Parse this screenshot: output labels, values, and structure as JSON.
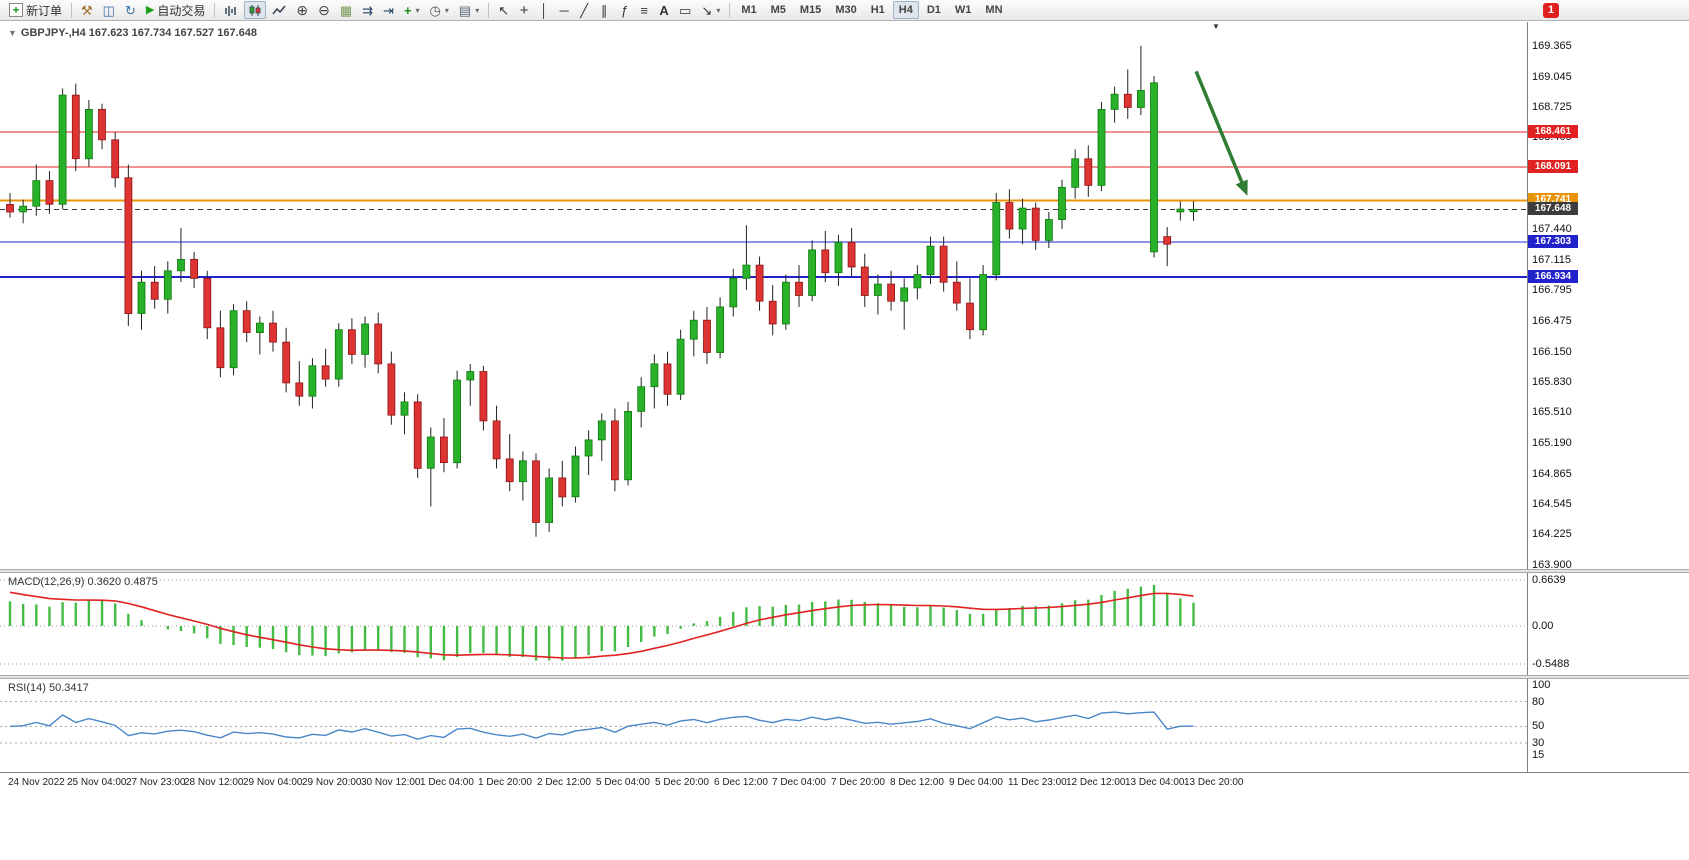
{
  "toolbar": {
    "new_order_label": "新订单",
    "autotrading_label": "自动交易",
    "timeframes": [
      "M1",
      "M5",
      "M15",
      "M30",
      "H1",
      "H4",
      "D1",
      "W1",
      "MN"
    ],
    "active_timeframe": "H4",
    "notification_count": "1"
  },
  "icons": {
    "new_order": "+",
    "hammer": "⚒",
    "chart_window": "◫",
    "cycle": "↻",
    "autotrading_play": "▶",
    "zoom_in": "⊕",
    "zoom_out": "⊖",
    "tile_windows": "▦",
    "auto_scroll": "⇉",
    "chart_shift": "⇥",
    "indicators_plus": "+",
    "periods_clock": "◷",
    "templates": "▤",
    "cursor": "↖",
    "crosshair": "+",
    "vertical_line": "│",
    "horizontal_line": "─",
    "trendline": "╱",
    "channel": "∥",
    "fibonacci": "ƒ",
    "shapes": "≡",
    "text": "A",
    "text_label": "▭",
    "arrows": "↘",
    "dropdown": "▾",
    "symbol_dropdown": "▼",
    "shift_marker": "▼"
  },
  "chart": {
    "symbol_title": "GBPJPY-,H4 167.623 167.734 167.527 167.648"
  },
  "time_axis": {
    "labels": [
      "24 Nov 2022",
      "25 Nov 04:00",
      "27 Nov 23:00",
      "28 Nov 12:00",
      "29 Nov 04:00",
      "29 Nov 20:00",
      "30 Nov 12:00",
      "1 Dec 04:00",
      "1 Dec 20:00",
      "2 Dec 12:00",
      "5 Dec 04:00",
      "5 Dec 20:00",
      "6 Dec 12:00",
      "7 Dec 04:00",
      "7 Dec 20:00",
      "8 Dec 12:00",
      "9 Dec 04:00",
      "11 Dec 23:00",
      "12 Dec 12:00",
      "13 Dec 04:00",
      "13 Dec 20:00"
    ]
  },
  "chart_data": [
    {
      "type": "candlestick",
      "title": "GBPJPY-,H4",
      "ohlc_display": {
        "open": "167.623",
        "high": "167.734",
        "low": "167.527",
        "close": "167.648"
      },
      "ylim": [
        163.85,
        169.62
      ],
      "price_axis_labels": [
        "169.365",
        "169.045",
        "168.725",
        "168.405",
        "167.440",
        "167.115",
        "166.795",
        "166.475",
        "166.150",
        "165.830",
        "165.510",
        "165.190",
        "164.865",
        "164.545",
        "164.225",
        "163.900"
      ],
      "colors": {
        "bull": "#29b129",
        "bull_border": "#0f7a0f",
        "bear": "#dd3333",
        "bear_border": "#8f1515",
        "wick": "#222222"
      },
      "levels": [
        {
          "value": 168.461,
          "label": "168.461",
          "color": "#e02222",
          "width": 1,
          "style": "solid"
        },
        {
          "value": 168.091,
          "label": "168.091",
          "color": "#e02222",
          "width": 1,
          "style": "solid"
        },
        {
          "value": 167.741,
          "label": "167.741",
          "color": "#e8940a",
          "width": 2,
          "style": "solid"
        },
        {
          "value": 167.648,
          "label": "167.648",
          "color": "#3c3c3c",
          "width": 1,
          "style": "dashed"
        },
        {
          "value": 167.303,
          "label": "167.303",
          "color": "#2222cc",
          "width": 1,
          "style": "solid"
        },
        {
          "value": 166.934,
          "label": "166.934",
          "color": "#2222cc",
          "width": 2,
          "style": "solid"
        }
      ],
      "annotation_arrow": {
        "from_index": 90.2,
        "from_price": 169.1,
        "to_index": 94.1,
        "to_price": 167.79,
        "color": "#2e7d32"
      },
      "candles": [
        [
          167.7,
          167.82,
          167.56,
          167.62
        ],
        [
          167.62,
          167.75,
          167.5,
          167.68
        ],
        [
          167.68,
          168.12,
          167.58,
          167.95
        ],
        [
          167.95,
          168.05,
          167.6,
          167.7
        ],
        [
          167.7,
          168.92,
          167.65,
          168.85
        ],
        [
          168.85,
          168.97,
          168.05,
          168.18
        ],
        [
          168.18,
          168.8,
          168.1,
          168.7
        ],
        [
          168.7,
          168.76,
          168.28,
          168.38
        ],
        [
          168.38,
          168.46,
          167.88,
          167.98
        ],
        [
          167.98,
          168.12,
          166.42,
          166.55
        ],
        [
          166.55,
          167.0,
          166.38,
          166.88
        ],
        [
          166.88,
          167.05,
          166.6,
          166.7
        ],
        [
          166.7,
          167.1,
          166.55,
          167.0
        ],
        [
          167.0,
          167.45,
          166.88,
          167.12
        ],
        [
          167.12,
          167.2,
          166.82,
          166.92
        ],
        [
          166.92,
          167.0,
          166.28,
          166.4
        ],
        [
          166.4,
          166.58,
          165.88,
          165.98
        ],
        [
          165.98,
          166.65,
          165.9,
          166.58
        ],
        [
          166.58,
          166.68,
          166.25,
          166.35
        ],
        [
          166.35,
          166.52,
          166.12,
          166.45
        ],
        [
          166.45,
          166.58,
          166.15,
          166.25
        ],
        [
          166.25,
          166.4,
          165.72,
          165.82
        ],
        [
          165.82,
          166.05,
          165.58,
          165.68
        ],
        [
          165.68,
          166.08,
          165.55,
          166.0
        ],
        [
          166.0,
          166.18,
          165.78,
          165.86
        ],
        [
          165.86,
          166.45,
          165.78,
          166.38
        ],
        [
          166.38,
          166.5,
          166.02,
          166.12
        ],
        [
          166.12,
          166.52,
          165.98,
          166.44
        ],
        [
          166.44,
          166.56,
          165.92,
          166.02
        ],
        [
          166.02,
          166.15,
          165.38,
          165.48
        ],
        [
          165.48,
          165.72,
          165.28,
          165.62
        ],
        [
          165.62,
          165.7,
          164.82,
          164.92
        ],
        [
          164.92,
          165.35,
          164.52,
          165.25
        ],
        [
          165.25,
          165.45,
          164.88,
          164.98
        ],
        [
          164.98,
          165.95,
          164.92,
          165.85
        ],
        [
          165.85,
          166.02,
          165.58,
          165.94
        ],
        [
          165.94,
          166.0,
          165.32,
          165.42
        ],
        [
          165.42,
          165.58,
          164.92,
          165.02
        ],
        [
          165.02,
          165.28,
          164.68,
          164.78
        ],
        [
          164.78,
          165.1,
          164.58,
          165.0
        ],
        [
          165.0,
          165.08,
          164.2,
          164.35
        ],
        [
          164.35,
          164.92,
          164.25,
          164.82
        ],
        [
          164.82,
          165.0,
          164.52,
          164.62
        ],
        [
          164.62,
          165.15,
          164.56,
          165.05
        ],
        [
          165.05,
          165.32,
          164.85,
          165.22
        ],
        [
          165.22,
          165.5,
          165.0,
          165.42
        ],
        [
          165.42,
          165.55,
          164.68,
          164.8
        ],
        [
          164.8,
          165.62,
          164.74,
          165.52
        ],
        [
          165.52,
          165.88,
          165.35,
          165.78
        ],
        [
          165.78,
          166.12,
          165.55,
          166.02
        ],
        [
          166.02,
          166.15,
          165.58,
          165.7
        ],
        [
          165.7,
          166.38,
          165.64,
          166.28
        ],
        [
          166.28,
          166.58,
          166.1,
          166.48
        ],
        [
          166.48,
          166.62,
          166.02,
          166.14
        ],
        [
          166.14,
          166.72,
          166.08,
          166.62
        ],
        [
          166.62,
          167.02,
          166.52,
          166.92
        ],
        [
          166.92,
          167.48,
          166.8,
          167.06
        ],
        [
          167.06,
          167.15,
          166.58,
          166.68
        ],
        [
          166.68,
          166.85,
          166.32,
          166.44
        ],
        [
          166.44,
          166.96,
          166.38,
          166.88
        ],
        [
          166.88,
          167.06,
          166.62,
          166.74
        ],
        [
          166.74,
          167.32,
          166.68,
          167.22
        ],
        [
          167.22,
          167.42,
          166.88,
          166.98
        ],
        [
          166.98,
          167.38,
          166.84,
          167.3
        ],
        [
          167.3,
          167.45,
          166.94,
          167.04
        ],
        [
          167.04,
          167.18,
          166.62,
          166.74
        ],
        [
          166.74,
          166.96,
          166.54,
          166.86
        ],
        [
          166.86,
          167.0,
          166.58,
          166.68
        ],
        [
          166.68,
          166.92,
          166.38,
          166.82
        ],
        [
          166.82,
          167.06,
          166.7,
          166.96
        ],
        [
          166.96,
          167.36,
          166.86,
          167.26
        ],
        [
          167.26,
          167.36,
          166.78,
          166.88
        ],
        [
          166.88,
          167.1,
          166.58,
          166.66
        ],
        [
          166.66,
          166.92,
          166.28,
          166.38
        ],
        [
          166.38,
          167.06,
          166.32,
          166.96
        ],
        [
          166.96,
          167.82,
          166.9,
          167.72
        ],
        [
          167.72,
          167.86,
          167.34,
          167.44
        ],
        [
          167.44,
          167.76,
          167.28,
          167.66
        ],
        [
          167.66,
          167.72,
          167.22,
          167.32
        ],
        [
          167.32,
          167.62,
          167.24,
          167.54
        ],
        [
          167.54,
          167.96,
          167.44,
          167.88
        ],
        [
          167.88,
          168.28,
          167.76,
          168.18
        ],
        [
          168.18,
          168.32,
          167.78,
          167.9
        ],
        [
          167.9,
          168.78,
          167.84,
          168.7
        ],
        [
          168.7,
          168.94,
          168.56,
          168.86
        ],
        [
          168.86,
          169.12,
          168.6,
          168.72
        ],
        [
          168.72,
          169.37,
          168.64,
          168.9
        ],
        [
          167.2,
          169.05,
          167.14,
          168.98
        ],
        [
          167.36,
          167.46,
          167.05,
          167.28
        ],
        [
          167.62,
          167.73,
          167.53,
          167.65
        ],
        [
          167.623,
          167.734,
          167.527,
          167.648
        ]
      ]
    },
    {
      "type": "macd",
      "label": "MACD(12,26,9) 0.3620 0.4875",
      "params": [
        12,
        26,
        9
      ],
      "display_values": [
        "0.3620",
        "0.4875"
      ],
      "axis_labels": [
        "0.6639",
        "0.00",
        "-0.5488"
      ],
      "ylim": [
        -0.72,
        0.75
      ],
      "clamp": [
        -0.5488,
        0.6639
      ],
      "colors": {
        "histogram": "#44bb44",
        "signal": "#e02222"
      }
    },
    {
      "type": "rsi",
      "label": "RSI(14) 50.3417",
      "period": 14,
      "display_value": "50.3417",
      "axis_labels": [
        "100",
        "80",
        "50",
        "30",
        "15"
      ],
      "levels": [
        80,
        50,
        30
      ],
      "ylim": [
        -5,
        106
      ],
      "color": "#4a86c8"
    }
  ]
}
